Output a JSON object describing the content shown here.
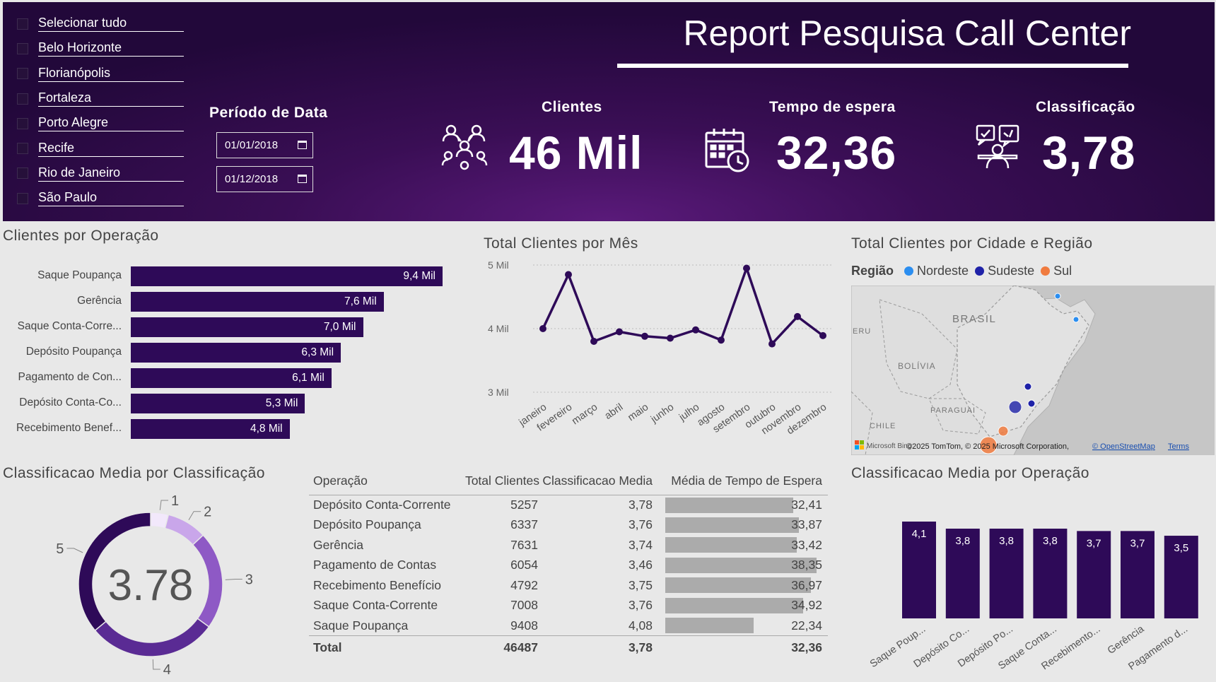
{
  "slicer": {
    "items": [
      "Selecionar tudo",
      "Belo Horizonte",
      "Florianópolis",
      "Fortaleza",
      "Porto Alegre",
      "Recife",
      "Rio de Janeiro",
      "São Paulo"
    ]
  },
  "period": {
    "title": "Período de Data",
    "start": "01/01/2018",
    "end": "01/12/2018"
  },
  "report_title": "Report Pesquisa Call Center",
  "kpis": {
    "clientes": {
      "label": "Clientes",
      "value": "46 Mil"
    },
    "tempo": {
      "label": "Tempo de espera",
      "value": "32,36"
    },
    "classificacao": {
      "label": "Classificação",
      "value": "3,78"
    }
  },
  "colors": {
    "bar": "#2e0a58",
    "line": "#2e0a58",
    "nordeste": "#2b8ef0",
    "sudeste": "#1f22a8",
    "sul": "#f07b3f",
    "donut": [
      "#f2e8fb",
      "#c9a6ea",
      "#8e59c5",
      "#5a2b94",
      "#2e0a58"
    ]
  },
  "map": {
    "title": "Total Clientes por Cidade e Região",
    "legend_title": "Região",
    "regions": [
      "Nordeste",
      "Sudeste",
      "Sul"
    ],
    "labels": [
      "BRASIL",
      "BOLÍVIA",
      "PARAGUAI",
      "CHILE",
      "ERU"
    ],
    "attribution": "Microsoft Bing",
    "copyright": "©2025 TomTom, © 2025 Microsoft Corporation,",
    "osm": "© OpenStreetMap",
    "terms": "Terms"
  },
  "table": {
    "headers": [
      "Operação",
      "Total Clientes",
      "Classificacao Media",
      "Média de Tempo de Espera"
    ],
    "rows": [
      {
        "op": "Depósito Conta-Corrente",
        "total": "5257",
        "media": "3,78",
        "tempo": "32,41",
        "tempo_num": 32.41
      },
      {
        "op": "Depósito Poupança",
        "total": "6337",
        "media": "3,76",
        "tempo": "33,87",
        "tempo_num": 33.87
      },
      {
        "op": "Gerência",
        "total": "7631",
        "media": "3,74",
        "tempo": "33,42",
        "tempo_num": 33.42
      },
      {
        "op": "Pagamento de Contas",
        "total": "6054",
        "media": "3,46",
        "tempo": "38,35",
        "tempo_num": 38.35
      },
      {
        "op": "Recebimento Benefício",
        "total": "4792",
        "media": "3,75",
        "tempo": "36,97",
        "tempo_num": 36.97
      },
      {
        "op": "Saque Conta-Corrente",
        "total": "7008",
        "media": "3,76",
        "tempo": "34,92",
        "tempo_num": 34.92
      },
      {
        "op": "Saque Poupança",
        "total": "9408",
        "media": "4,08",
        "tempo": "22,34",
        "tempo_num": 22.34
      }
    ],
    "total": {
      "label": "Total",
      "total": "46487",
      "media": "3,78",
      "tempo": "32,36"
    }
  },
  "chart_data": [
    {
      "type": "bar",
      "orientation": "horizontal",
      "title": "Clientes por Operação",
      "categories": [
        "Saque Poupança",
        "Gerência",
        "Saque Conta-Corre...",
        "Depósito Poupança",
        "Pagamento de Con...",
        "Depósito Conta-Co...",
        "Recebimento Benef..."
      ],
      "values": [
        9408,
        7631,
        7008,
        6337,
        6054,
        5257,
        4792
      ],
      "labels": [
        "9,4 Mil",
        "7,6 Mil",
        "7,0 Mil",
        "6,3 Mil",
        "6,1 Mil",
        "5,3 Mil",
        "4,8 Mil"
      ],
      "xlim": [
        0,
        9408
      ]
    },
    {
      "type": "line",
      "title": "Total Clientes por Mês",
      "categories": [
        "janeiro",
        "fevereiro",
        "março",
        "abril",
        "maio",
        "junho",
        "julho",
        "agosto",
        "setembro",
        "outubro",
        "novembro",
        "dezembro"
      ],
      "values": [
        4.0,
        4.85,
        3.8,
        3.95,
        3.88,
        3.85,
        3.98,
        3.82,
        4.95,
        3.76,
        4.19,
        3.89
      ],
      "yticks": [
        "3 Mil",
        "4 Mil",
        "5 Mil"
      ],
      "ylim": [
        3,
        5
      ]
    },
    {
      "type": "pie",
      "title": "Classificacao Media por Classificação",
      "center_label": "3.78",
      "categories": [
        "1",
        "2",
        "3",
        "4",
        "5"
      ],
      "values": [
        4,
        9,
        22,
        29,
        36
      ]
    },
    {
      "type": "bar",
      "title": "Classificacao Media por Operação",
      "categories": [
        "Saque Poup...",
        "Depósito Co...",
        "Depósito Po...",
        "Saque Conta...",
        "Recebimento...",
        "Gerência",
        "Pagamento d..."
      ],
      "values": [
        4.1,
        3.8,
        3.8,
        3.8,
        3.7,
        3.7,
        3.5
      ],
      "labels": [
        "4,1",
        "3,8",
        "3,8",
        "3,8",
        "3,7",
        "3,7",
        "3,5"
      ],
      "ylim": [
        0,
        4.1
      ]
    }
  ]
}
